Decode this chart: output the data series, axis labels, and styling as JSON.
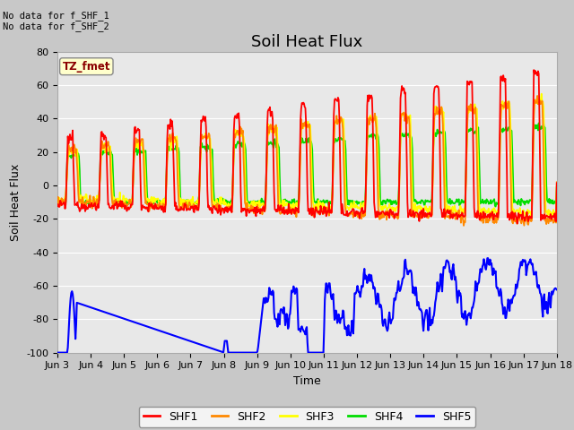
{
  "title": "Soil Heat Flux",
  "ylabel": "Soil Heat Flux",
  "xlabel": "Time",
  "ylim": [
    -100,
    80
  ],
  "yticks": [
    -100,
    -80,
    -60,
    -40,
    -20,
    0,
    20,
    40,
    60,
    80
  ],
  "xtick_labels": [
    "Jun 3",
    "Jun 4",
    "Jun 5",
    "Jun 6",
    "Jun 7",
    "Jun 8",
    "Jun 9",
    "Jun 10",
    "Jun 11",
    "Jun 12",
    "Jun 13",
    "Jun 14",
    "Jun 15",
    "Jun 16",
    "Jun 17",
    "Jun 18"
  ],
  "colors": {
    "SHF1": "#ff0000",
    "SHF2": "#ff8800",
    "SHF3": "#ffff00",
    "SHF4": "#00dd00",
    "SHF5": "#0000ff"
  },
  "annotation_text": "No data for f_SHF_1\nNo data for f_SHF_2",
  "tz_label": "TZ_fmet",
  "fig_bg_color": "#c8c8c8",
  "plot_bg_color": "#e8e8e8",
  "grid_color": "#ffffff",
  "title_fontsize": 13,
  "axis_fontsize": 8,
  "n_days": 15
}
